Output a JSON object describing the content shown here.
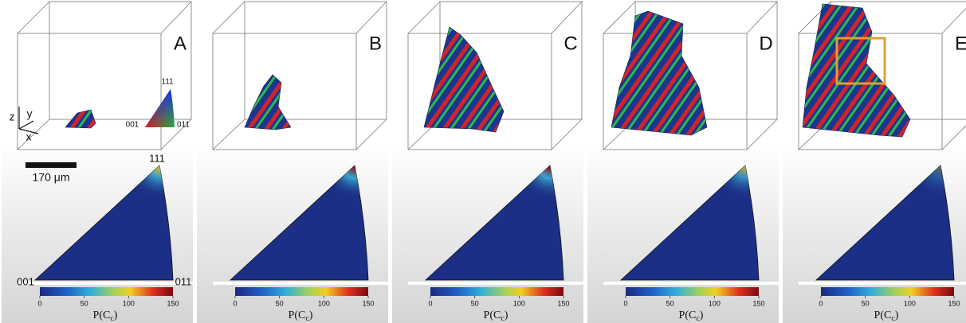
{
  "panels": [
    {
      "label": "A"
    },
    {
      "label": "B"
    },
    {
      "label": "C"
    },
    {
      "label": "D"
    },
    {
      "label": "E"
    }
  ],
  "orientation_labels": {
    "top": "111",
    "left": "001",
    "right": "011"
  },
  "axes_labels": {
    "z": "z",
    "y": "y",
    "x": "x"
  },
  "scale_bar": "170 μm",
  "colorbar": {
    "ticks": [
      0,
      50,
      100,
      150
    ],
    "label_main": "P(C",
    "label_sub": "c",
    "label_end": ")"
  }
}
